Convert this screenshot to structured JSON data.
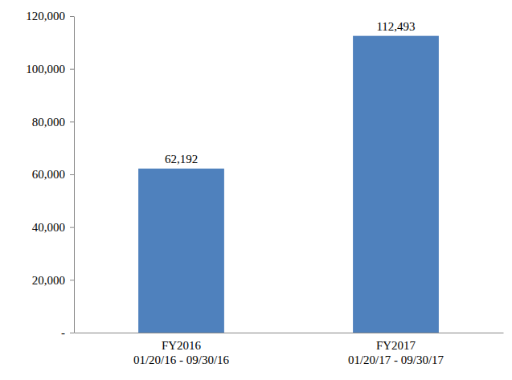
{
  "chart_data": {
    "type": "bar",
    "categories": [
      "FY2016\n01/20/16 - 09/30/16",
      "FY2017\n01/20/17 - 09/30/17"
    ],
    "values": [
      62192,
      112493
    ],
    "value_labels": [
      "62,192",
      "112,493"
    ],
    "data_labels": true,
    "color": "#4f81bd",
    "ylim": [
      0,
      120000
    ],
    "yticks": [
      {
        "value": 0,
        "label": "-"
      },
      {
        "value": 20000,
        "label": "20,000"
      },
      {
        "value": 40000,
        "label": "40,000"
      },
      {
        "value": 60000,
        "label": "60,000"
      },
      {
        "value": 80000,
        "label": "80,000"
      },
      {
        "value": 100000,
        "label": "100,000"
      },
      {
        "value": 120000,
        "label": "120,000"
      }
    ],
    "grid": false
  }
}
